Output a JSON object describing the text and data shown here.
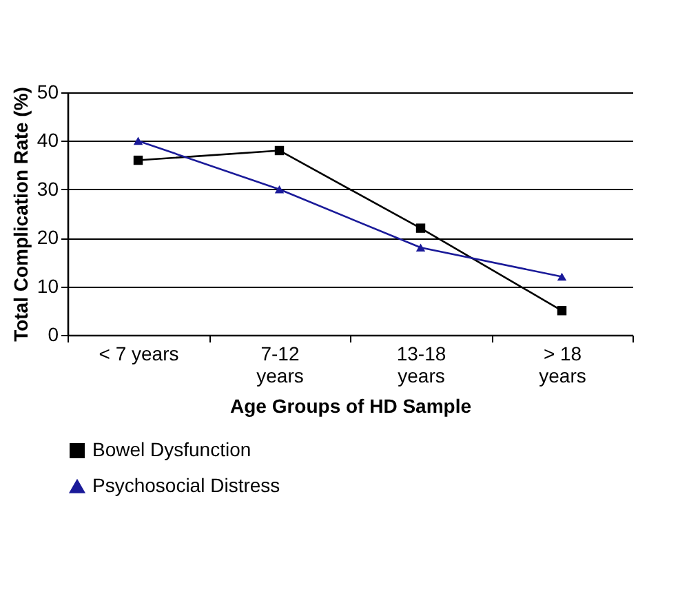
{
  "chart_data": {
    "type": "line",
    "xlabel": "Age Groups of HD Sample",
    "ylabel": "Total Complication Rate (%)",
    "categories": [
      "< 7 years",
      "7-12\nyears",
      "13-18\nyears",
      "> 18\nyears"
    ],
    "series": [
      {
        "name": "Bowel Dysfunction",
        "color": "#000000",
        "marker": "square",
        "values": [
          36,
          38,
          22,
          5
        ]
      },
      {
        "name": "Psychosocial Distress",
        "color": "#1a1a99",
        "marker": "triangle",
        "values": [
          40,
          30,
          18,
          12
        ]
      }
    ],
    "ylim": [
      0,
      50
    ],
    "yticks": [
      0,
      10,
      20,
      30,
      40,
      50
    ],
    "grid": "y",
    "legend": "bottom",
    "line_style": "solid"
  }
}
